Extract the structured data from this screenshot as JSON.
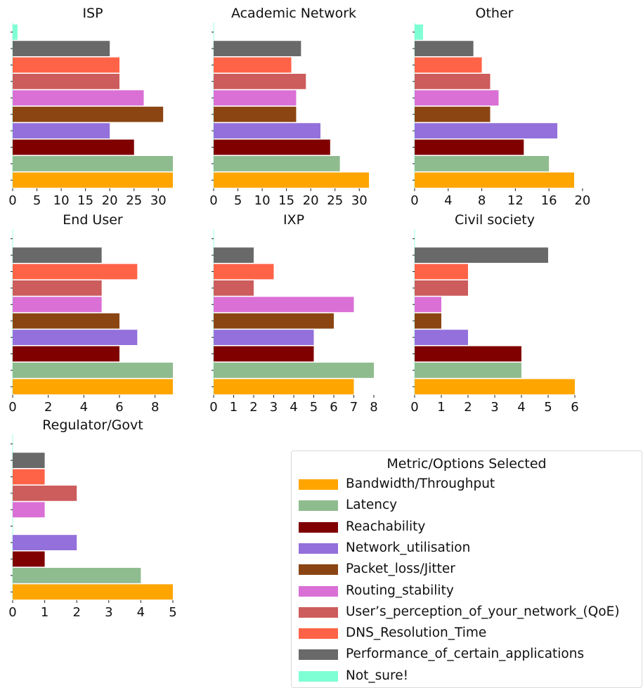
{
  "legend": {
    "title": "Metric/Options Selected",
    "items": [
      {
        "label": "Bandwidth/Throughput",
        "color": "#FFA500"
      },
      {
        "label": "Latency",
        "color": "#8FBC8F"
      },
      {
        "label": "Reachability",
        "color": "#800000"
      },
      {
        "label": "Network_utilisation",
        "color": "#9370DB"
      },
      {
        "label": "Packet_loss/Jitter",
        "color": "#8B4513"
      },
      {
        "label": "Routing_stability",
        "color": "#DA70D6"
      },
      {
        "label": "User’s_perception_of_your_network_(QoE)",
        "color": "#CD5C5C"
      },
      {
        "label": "DNS_Resolution_Time",
        "color": "#FF6347"
      },
      {
        "label": "Performance_of_certain_applications",
        "color": "#696969"
      },
      {
        "label": "Not_sure!",
        "color": "#7FFFD4"
      }
    ]
  },
  "chart_data": [
    {
      "type": "bar",
      "orientation": "horizontal",
      "title": "ISP",
      "xlim": [
        0,
        33
      ],
      "xticks": [
        "0",
        "5",
        "10",
        "15",
        "20",
        "25",
        "30"
      ],
      "values": [
        33,
        33,
        25,
        20,
        31,
        27,
        22,
        22,
        20,
        1
      ]
    },
    {
      "type": "bar",
      "orientation": "horizontal",
      "title": "Academic Network",
      "xlim": [
        0,
        33
      ],
      "xticks": [
        "0",
        "5",
        "10",
        "15",
        "20",
        "25",
        "30"
      ],
      "values": [
        32,
        26,
        24,
        22,
        17,
        17,
        19,
        16,
        18,
        0
      ]
    },
    {
      "type": "bar",
      "orientation": "horizontal",
      "title": "Other",
      "xlim": [
        0,
        19
      ],
      "xticks": [
        "0",
        "4",
        "8",
        "12",
        "16",
        "20"
      ],
      "values": [
        19,
        16,
        13,
        17,
        9,
        10,
        9,
        8,
        7,
        1
      ]
    },
    {
      "type": "bar",
      "orientation": "horizontal",
      "title": "End User",
      "xlim": [
        0,
        9
      ],
      "xticks": [
        "0",
        "2",
        "4",
        "6",
        "8"
      ],
      "values": [
        9,
        9,
        6,
        7,
        6,
        5,
        5,
        7,
        5,
        0
      ]
    },
    {
      "type": "bar",
      "orientation": "horizontal",
      "title": "IXP",
      "xlim": [
        0,
        8
      ],
      "xticks": [
        "0",
        "1",
        "2",
        "3",
        "4",
        "5",
        "6",
        "7",
        "8"
      ],
      "values": [
        7,
        8,
        5,
        5,
        6,
        7,
        2,
        3,
        2,
        0
      ]
    },
    {
      "type": "bar",
      "orientation": "horizontal",
      "title": "Civil society",
      "xlim": [
        0,
        6
      ],
      "xticks": [
        "0",
        "1",
        "2",
        "3",
        "4",
        "5",
        "6"
      ],
      "values": [
        6,
        4,
        4,
        2,
        1,
        1,
        2,
        2,
        5,
        0
      ]
    },
    {
      "type": "bar",
      "orientation": "horizontal",
      "title": "Regulator/Govt",
      "xlim": [
        0,
        5
      ],
      "xticks": [
        "0",
        "1",
        "2",
        "3",
        "4",
        "5"
      ],
      "values": [
        5,
        4,
        1,
        2,
        0,
        1,
        2,
        1,
        1,
        0
      ]
    }
  ]
}
